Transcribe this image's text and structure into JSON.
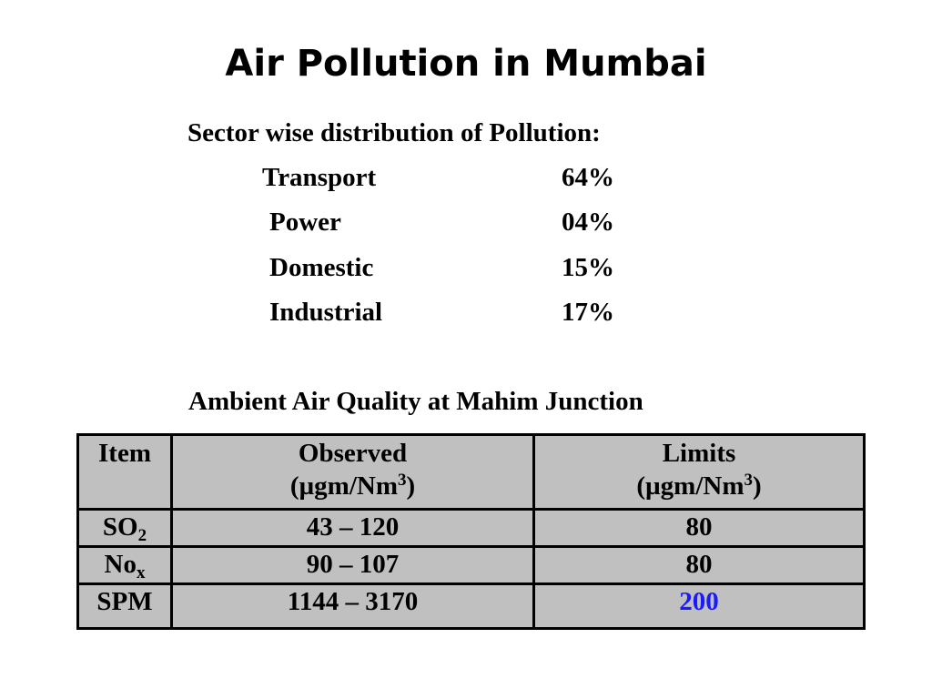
{
  "title": "Air Pollution in Mumbai",
  "sector": {
    "heading": "Sector wise distribution of Pollution:",
    "rows": [
      {
        "name": "Transport",
        "value": "64%"
      },
      {
        "name": "Power",
        "value": "04%"
      },
      {
        "name": "Domestic",
        "value": "15%"
      },
      {
        "name": "Industrial",
        "value": "17%"
      }
    ]
  },
  "air_quality": {
    "heading": "Ambient Air Quality at Mahim Junction",
    "headers": {
      "item": "Item",
      "observed": "Observed",
      "limits": "Limits",
      "unit_open": "(µgm/Nm",
      "unit_sup": "3",
      "unit_close": ")"
    },
    "rows": [
      {
        "item": "SO",
        "item_sub": "2",
        "observed": "43 – 120",
        "limit": "80"
      },
      {
        "item": "No",
        "item_sub": "x",
        "observed": "90 – 107",
        "limit": "80"
      },
      {
        "item": "SPM",
        "item_sub": "",
        "observed": "1144 – 3170",
        "limit": "200"
      }
    ],
    "highlight_color": "#1a1aff",
    "table_background": "#c0c0c0"
  }
}
